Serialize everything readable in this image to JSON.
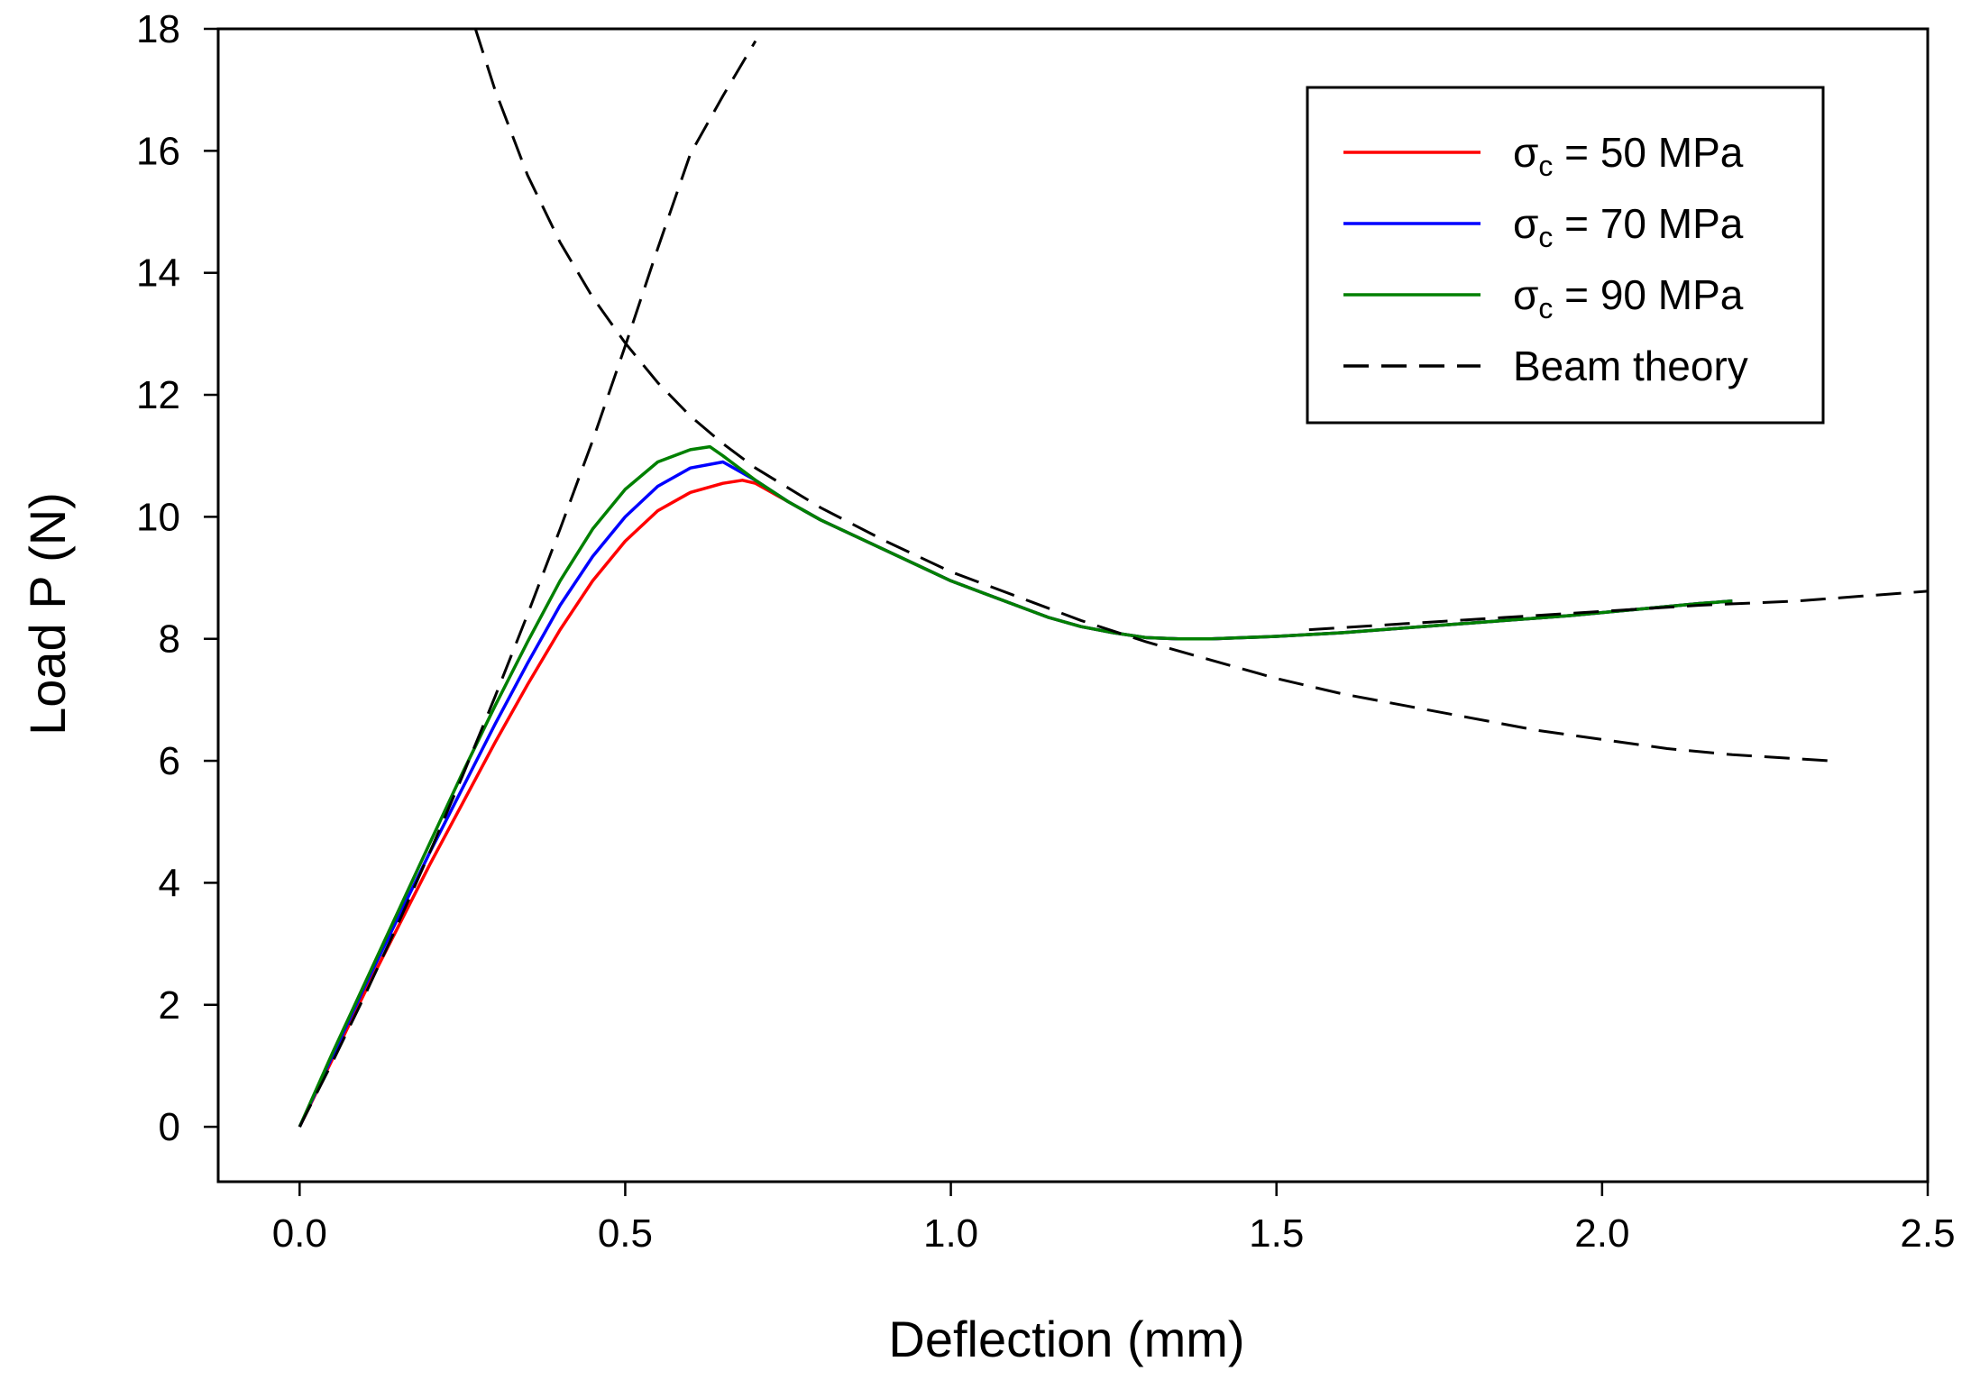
{
  "chart_data": {
    "type": "line",
    "title": "",
    "xlabel": "Deflection  (mm)",
    "ylabel": "Load P (N)",
    "xlim": [
      -0.125,
      2.5
    ],
    "ylim": [
      -0.9,
      18
    ],
    "xticks": [
      0.0,
      0.5,
      1.0,
      1.5,
      2.0,
      2.5
    ],
    "xtick_labels": [
      "0.0",
      "0.5",
      "1.0",
      "1.5",
      "2.0",
      "2.5"
    ],
    "yticks": [
      0,
      2,
      4,
      6,
      8,
      10,
      12,
      14,
      16,
      18
    ],
    "ytick_labels": [
      "0",
      "2",
      "4",
      "6",
      "8",
      "10",
      "12",
      "14",
      "16",
      "18"
    ],
    "grid": false,
    "legend_position": "top-right",
    "series": [
      {
        "name": "σc = 50 MPa",
        "legend_symbol": "σ",
        "legend_subscript": "c",
        "legend_value": " = 50 MPa",
        "color": "#ff0000",
        "style": "solid",
        "x": [
          0.0,
          0.05,
          0.1,
          0.15,
          0.2,
          0.25,
          0.3,
          0.35,
          0.4,
          0.45,
          0.5,
          0.55,
          0.6,
          0.65,
          0.68,
          0.7,
          0.75,
          0.8,
          0.85,
          0.9,
          0.95,
          1.0,
          1.05,
          1.1,
          1.15,
          1.2,
          1.25,
          1.3,
          1.35,
          1.4,
          1.45,
          1.5,
          1.55,
          1.6,
          1.65,
          1.7,
          1.75,
          1.8,
          1.85,
          1.9,
          1.95,
          2.0,
          2.05,
          2.1,
          2.15,
          2.2
        ],
        "y": [
          0.0,
          1.1,
          2.2,
          3.25,
          4.3,
          5.3,
          6.3,
          7.25,
          8.15,
          8.95,
          9.6,
          10.1,
          10.4,
          10.55,
          10.6,
          10.55,
          10.25,
          9.95,
          9.7,
          9.45,
          9.2,
          8.95,
          8.75,
          8.55,
          8.35,
          8.2,
          8.1,
          8.02,
          8.0,
          8.0,
          8.02,
          8.04,
          8.07,
          8.1,
          8.14,
          8.18,
          8.22,
          8.26,
          8.3,
          8.34,
          8.38,
          8.43,
          8.48,
          8.53,
          8.58,
          8.62
        ]
      },
      {
        "name": "σc = 70 MPa",
        "legend_symbol": "σ",
        "legend_subscript": "c",
        "legend_value": " = 70 MPa",
        "color": "#0000ff",
        "style": "solid",
        "x": [
          0.0,
          0.05,
          0.1,
          0.15,
          0.2,
          0.25,
          0.3,
          0.35,
          0.4,
          0.45,
          0.5,
          0.55,
          0.6,
          0.65,
          0.7,
          0.75,
          0.8,
          0.85,
          0.9,
          0.95,
          1.0,
          1.05,
          1.1,
          1.15,
          1.2,
          1.25,
          1.3,
          1.35,
          1.4,
          1.45,
          1.5,
          1.55,
          1.6,
          1.65,
          1.7,
          1.75,
          1.8,
          1.85,
          1.9,
          1.95,
          2.0,
          2.05,
          2.1,
          2.15,
          2.2
        ],
        "y": [
          0.0,
          1.15,
          2.3,
          3.4,
          4.5,
          5.55,
          6.6,
          7.6,
          8.55,
          9.35,
          10.0,
          10.5,
          10.8,
          10.9,
          10.6,
          10.25,
          9.95,
          9.7,
          9.45,
          9.2,
          8.95,
          8.75,
          8.55,
          8.35,
          8.2,
          8.1,
          8.02,
          8.0,
          8.0,
          8.02,
          8.04,
          8.07,
          8.1,
          8.14,
          8.18,
          8.22,
          8.26,
          8.3,
          8.34,
          8.38,
          8.43,
          8.48,
          8.53,
          8.58,
          8.62
        ]
      },
      {
        "name": "σc = 90 MPa",
        "legend_symbol": "σ",
        "legend_subscript": "c",
        "legend_value": " = 90 MPa",
        "color": "#008000",
        "style": "solid",
        "x": [
          0.0,
          0.05,
          0.1,
          0.15,
          0.2,
          0.25,
          0.3,
          0.35,
          0.4,
          0.45,
          0.5,
          0.55,
          0.6,
          0.63,
          0.65,
          0.7,
          0.75,
          0.8,
          0.85,
          0.9,
          0.95,
          1.0,
          1.05,
          1.1,
          1.15,
          1.2,
          1.25,
          1.3,
          1.35,
          1.4,
          1.45,
          1.5,
          1.55,
          1.6,
          1.65,
          1.7,
          1.75,
          1.8,
          1.85,
          1.9,
          1.95,
          2.0,
          2.05,
          2.1,
          2.15,
          2.2
        ],
        "y": [
          0.0,
          1.2,
          2.35,
          3.5,
          4.65,
          5.8,
          6.9,
          7.95,
          8.95,
          9.8,
          10.45,
          10.9,
          11.1,
          11.15,
          11.0,
          10.6,
          10.25,
          9.95,
          9.7,
          9.45,
          9.2,
          8.95,
          8.75,
          8.55,
          8.35,
          8.2,
          8.1,
          8.02,
          8.0,
          8.0,
          8.02,
          8.04,
          8.07,
          8.1,
          8.14,
          8.18,
          8.22,
          8.26,
          8.3,
          8.34,
          8.38,
          8.43,
          8.48,
          8.53,
          8.58,
          8.62
        ]
      },
      {
        "name": "Beam theory",
        "legend_label": "Beam theory",
        "color": "#000000",
        "style": "dashed",
        "segments": [
          {
            "x": [
              0.0,
              0.05,
              0.1,
              0.15,
              0.2,
              0.25,
              0.3,
              0.35,
              0.4,
              0.45,
              0.5,
              0.55,
              0.6,
              0.65,
              0.7
            ],
            "y": [
              0.0,
              1.05,
              2.15,
              3.3,
              4.5,
              5.75,
              7.05,
              8.4,
              9.8,
              11.25,
              12.8,
              14.4,
              15.95,
              16.9,
              17.8
            ]
          },
          {
            "x": [
              0.27,
              0.3,
              0.35,
              0.4,
              0.45,
              0.5,
              0.55,
              0.6,
              0.65,
              0.7,
              0.8,
              0.9,
              1.0,
              1.1,
              1.2,
              1.3,
              1.4,
              1.5,
              1.6,
              1.7,
              1.8,
              1.9,
              2.0,
              2.1,
              2.2,
              2.35
            ],
            "y": [
              18.0,
              17.0,
              15.6,
              14.5,
              13.6,
              12.85,
              12.2,
              11.65,
              11.2,
              10.8,
              10.15,
              9.6,
              9.1,
              8.7,
              8.3,
              7.95,
              7.65,
              7.35,
              7.1,
              6.9,
              6.7,
              6.5,
              6.35,
              6.2,
              6.1,
              6.0
            ]
          },
          {
            "x": [
              1.55,
              1.7,
              1.85,
              2.0,
              2.15,
              2.3,
              2.4,
              2.5
            ],
            "y": [
              8.15,
              8.25,
              8.35,
              8.45,
              8.55,
              8.62,
              8.7,
              8.78
            ]
          }
        ]
      }
    ]
  }
}
